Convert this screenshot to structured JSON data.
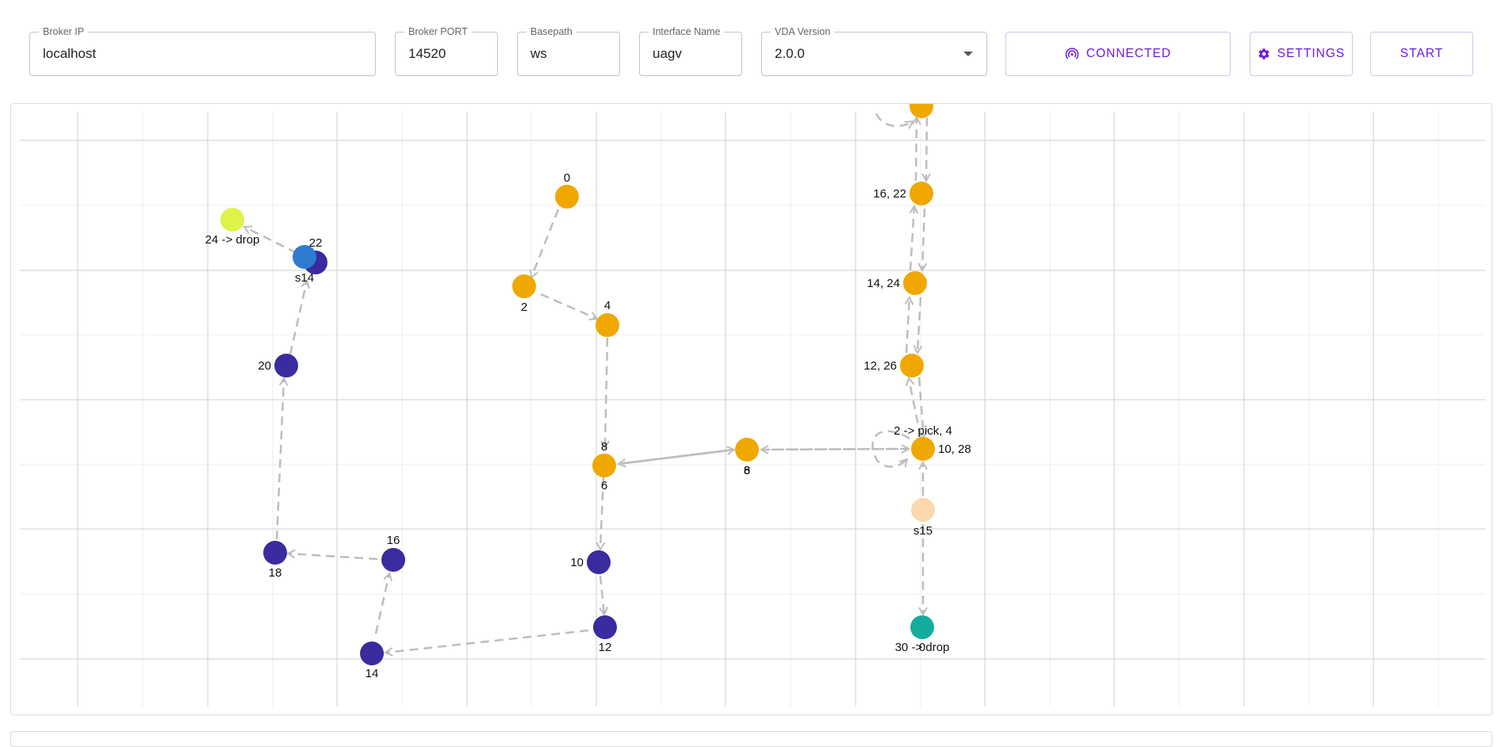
{
  "config": {
    "broker_ip": {
      "label": "Broker IP",
      "value": "localhost"
    },
    "broker_port": {
      "label": "Broker PORT",
      "value": "14520"
    },
    "basepath": {
      "label": "Basepath",
      "value": "ws"
    },
    "interface_name": {
      "label": "Interface Name",
      "value": "uagv"
    },
    "vda_version": {
      "label": "VDA Version",
      "value": "2.0.0"
    }
  },
  "buttons": {
    "connected": "CONNECTED",
    "settings": "SETTINGS",
    "start": "START"
  },
  "colors": {
    "accent": "#6a1be0",
    "orange_node": "#f0a800",
    "purple_node": "#3a2b9e",
    "blue_node": "#2e7bd1",
    "lime_node": "#def24a",
    "peach_node": "#fbd9ac",
    "teal_node": "#14ad9d",
    "edge": "#bdbdbd"
  },
  "map": {
    "nodes": [
      {
        "id": "o0",
        "color": "orange",
        "label": "0"
      },
      {
        "id": "o2",
        "color": "orange",
        "label": "2"
      },
      {
        "id": "o4",
        "color": "orange",
        "label": "4"
      },
      {
        "id": "o8",
        "color": "orange",
        "label": "8",
        "label2": "6"
      },
      {
        "id": "o6",
        "color": "orange",
        "label": "8",
        "label2": "6"
      },
      {
        "id": "otop",
        "color": "orange",
        "label": ""
      },
      {
        "id": "o16",
        "color": "orange",
        "label": "16, 22"
      },
      {
        "id": "o14",
        "color": "orange",
        "label": "14, 24"
      },
      {
        "id": "o12",
        "color": "orange",
        "label": "12, 26"
      },
      {
        "id": "o10",
        "color": "orange",
        "label": "10, 28",
        "label2": "2 -> pick, 4"
      },
      {
        "id": "s15",
        "color": "peach",
        "label": "s15"
      },
      {
        "id": "t30",
        "color": "teal",
        "label": "30 -> drop",
        "label2": "0"
      },
      {
        "id": "p10",
        "color": "purple",
        "label": "10"
      },
      {
        "id": "p12",
        "color": "purple",
        "label": "12"
      },
      {
        "id": "p14",
        "color": "purple",
        "label": "14"
      },
      {
        "id": "p16",
        "color": "purple",
        "label": "16"
      },
      {
        "id": "p18",
        "color": "purple",
        "label": "18"
      },
      {
        "id": "p20",
        "color": "purple",
        "label": "20"
      },
      {
        "id": "p22",
        "color": "purple",
        "label": "22"
      },
      {
        "id": "s14",
        "color": "blue",
        "label": "s14"
      },
      {
        "id": "l24",
        "color": "lime",
        "label": "24 -> drop"
      }
    ]
  }
}
